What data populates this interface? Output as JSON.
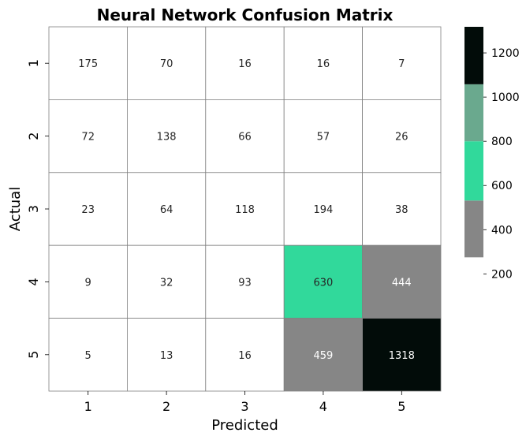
{
  "chart_data": {
    "type": "heatmap",
    "title": "Neural Network Confusion Matrix",
    "xlabel": "Predicted",
    "ylabel": "Actual",
    "x_categories": [
      "1",
      "2",
      "3",
      "4",
      "5"
    ],
    "y_categories": [
      "1",
      "2",
      "3",
      "4",
      "5"
    ],
    "values": [
      [
        175,
        70,
        16,
        16,
        7
      ],
      [
        72,
        138,
        66,
        57,
        26
      ],
      [
        23,
        64,
        118,
        194,
        38
      ],
      [
        9,
        32,
        93,
        630,
        444
      ],
      [
        5,
        13,
        16,
        459,
        1318
      ]
    ],
    "colorbar": {
      "ticks": [
        200,
        400,
        600,
        800,
        1000,
        1200
      ],
      "range": [
        5,
        1318
      ],
      "bands": [
        {
          "from": 5,
          "to": 275,
          "color": "#ffffff"
        },
        {
          "from": 275,
          "to": 532,
          "color": "#868686"
        },
        {
          "from": 532,
          "to": 800,
          "color": "#31d99b"
        },
        {
          "from": 800,
          "to": 1058,
          "color": "#6aa98e"
        },
        {
          "from": 1058,
          "to": 1318,
          "color": "#020c09"
        }
      ]
    },
    "grid_color": "#808080"
  }
}
